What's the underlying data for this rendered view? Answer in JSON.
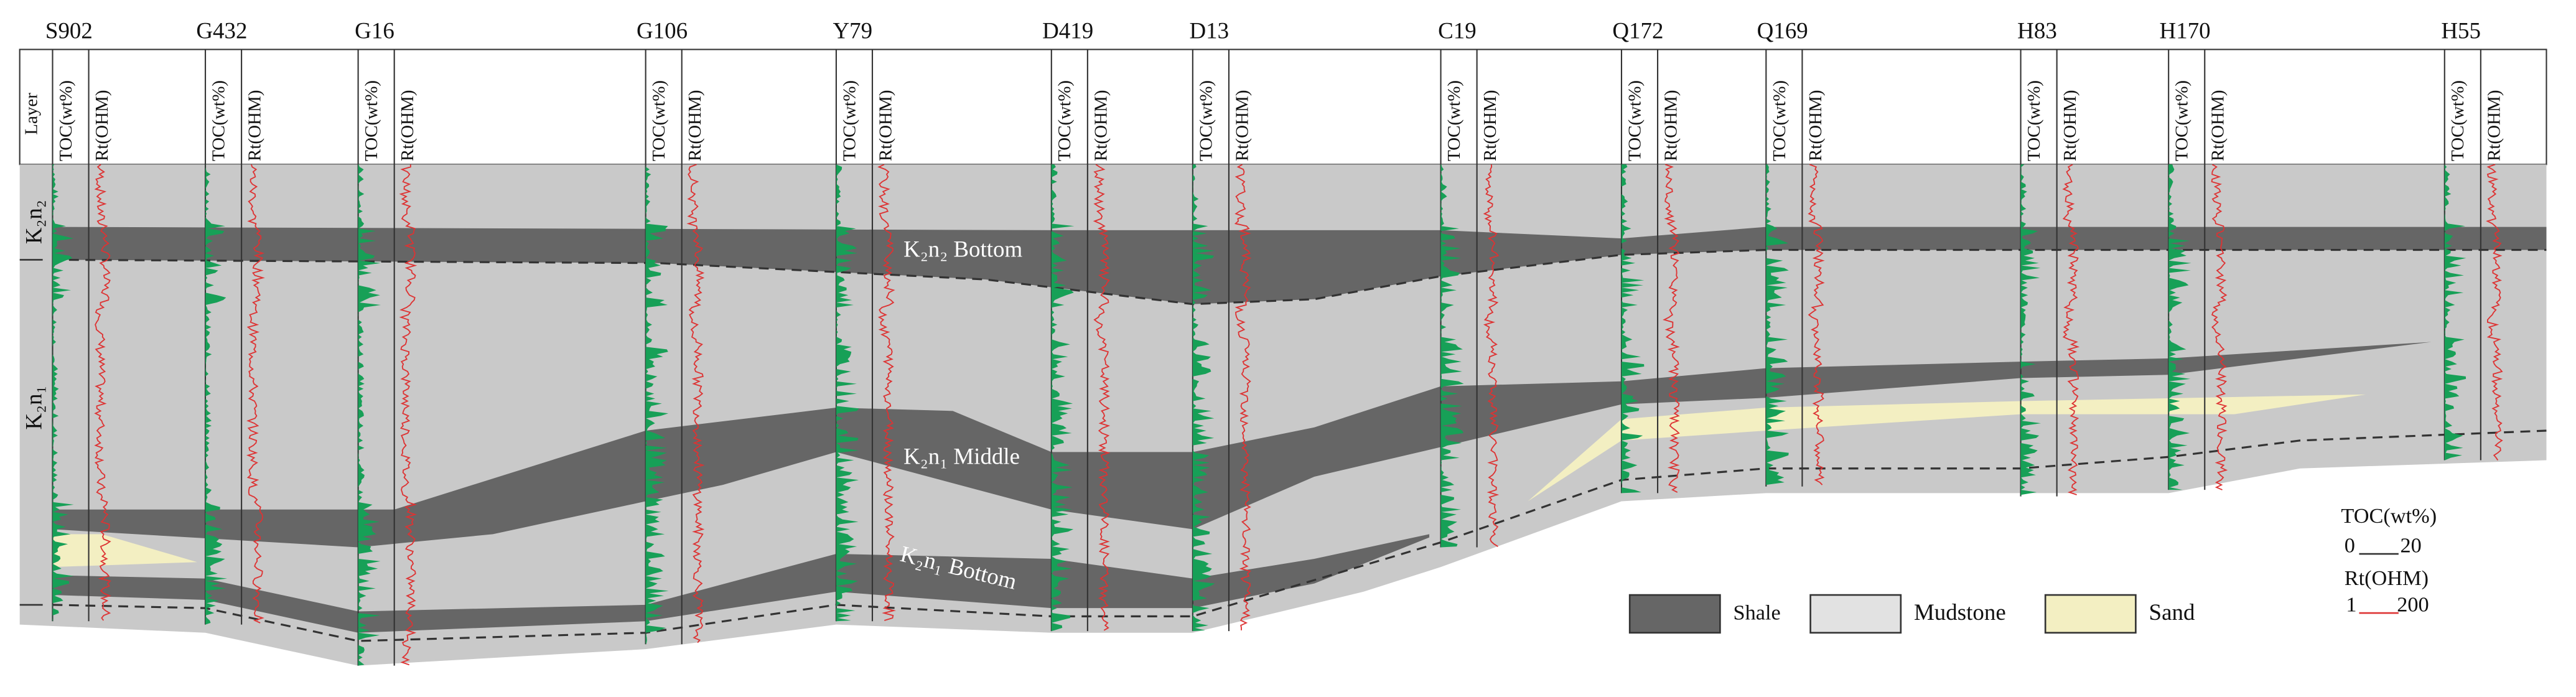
{
  "wells": [
    "S902",
    "G432",
    "G16",
    "G106",
    "Y79",
    "D419",
    "D13",
    "C19",
    "Q172",
    "Q169",
    "H83",
    "H170",
    "H55"
  ],
  "track_headers": {
    "toc": "TOC(wt%)",
    "rt": "Rt(OHM)"
  },
  "layer_header": "Layer",
  "layers": [
    "K₂n₂",
    "K₂n₁"
  ],
  "annotations": [
    "K₂n₂ Bottom",
    "K₂n₁ Middle",
    "K₂n₁ Bottom"
  ],
  "legend": [
    "Shale",
    "Mudstone",
    "Sand"
  ],
  "scale": {
    "toc_title": "TOC(wt%)",
    "toc_min": 0,
    "toc_max": 20,
    "rt_title": "Rt(OHM)",
    "rt_min": 1,
    "rt_max": 200
  }
}
